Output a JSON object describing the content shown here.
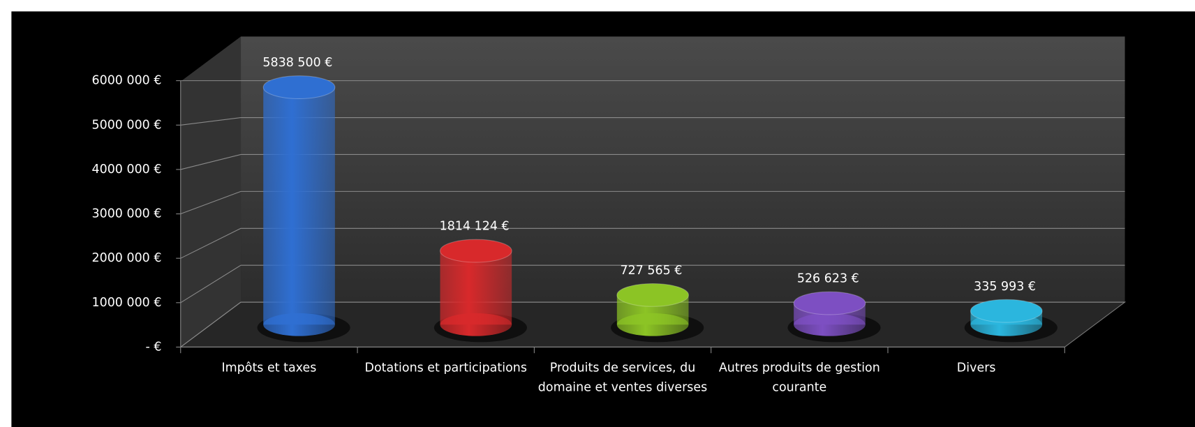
{
  "chart_data": {
    "type": "bar3d",
    "categories": [
      "Impôts et taxes",
      "Dotations et participations",
      "Produits de services, du domaine et ventes diverses",
      "Autres produits de gestion courante",
      "Divers"
    ],
    "values": [
      5838500,
      1814124,
      727565,
      526623,
      335993
    ],
    "value_labels": [
      "5838 500 €",
      "1814 124 €",
      "727 565 €",
      "526 623 €",
      "335 993 €"
    ],
    "colors": [
      "#2f6fd2",
      "#d8292b",
      "#8cc425",
      "#7d4fc2",
      "#2bb6de"
    ],
    "ylim": [
      0,
      6000000
    ],
    "yticks": [
      {
        "value": 0,
        "label": "-  €"
      },
      {
        "value": 1000000,
        "label": "1000 000 €"
      },
      {
        "value": 2000000,
        "label": "2000 000 €"
      },
      {
        "value": 3000000,
        "label": "3000 000 €"
      },
      {
        "value": 4000000,
        "label": "4000 000 €"
      },
      {
        "value": 5000000,
        "label": "5000 000 €"
      },
      {
        "value": 6000000,
        "label": "6000 000 €"
      }
    ],
    "grid": true
  }
}
